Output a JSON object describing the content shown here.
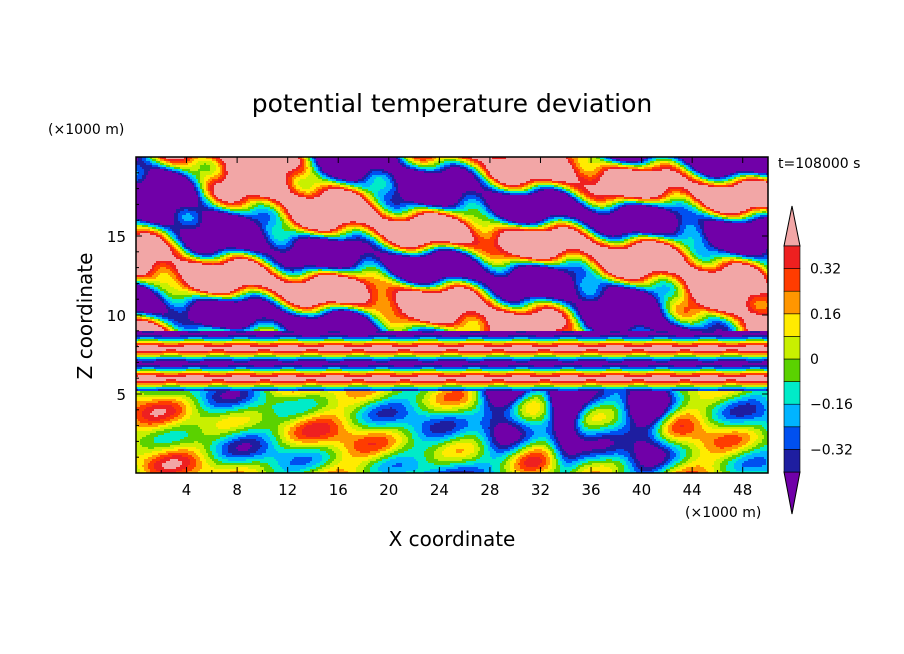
{
  "chart_data": {
    "type": "heatmap",
    "title": "potential temperature deviation",
    "xlabel": "X coordinate",
    "ylabel": "Z coordinate",
    "x_unit": "(×1000 m)",
    "y_unit": "(×1000 m)",
    "time_label": "t=108000 s",
    "x_ticks": [
      "4",
      "8",
      "12",
      "16",
      "20",
      "24",
      "28",
      "32",
      "36",
      "40",
      "44",
      "48"
    ],
    "y_ticks": [
      "5",
      "10",
      "15"
    ],
    "xlim": [
      0,
      50
    ],
    "ylim": [
      0,
      20
    ],
    "grid": false,
    "colorbar": {
      "labels": [
        "0.32",
        "0.16",
        "0",
        "-0.16",
        "-0.32"
      ],
      "levels": [
        -0.4,
        -0.32,
        -0.24,
        -0.16,
        -0.08,
        0,
        0.08,
        0.16,
        0.24,
        0.32,
        0.4
      ],
      "colors": [
        "#7000a8",
        "#1e1ea0",
        "#0050f0",
        "#00b4ff",
        "#00ebc8",
        "#5ad200",
        "#c8f000",
        "#ffeb00",
        "#ff9600",
        "#ff3c00",
        "#ee2020",
        "#f2a6a6"
      ],
      "extends": "both"
    },
    "pattern_notes": "Upper layer (z 10-20 km) alternating pink (>0.4) and purple (<-0.4) bands; thin pink/green horizontal stratification near z 6-8 km; lower layer (z 0-5 km) turbulent eddies of green, yellow, cyan and orange with purple plumes near x 28-32 and 38-44"
  }
}
